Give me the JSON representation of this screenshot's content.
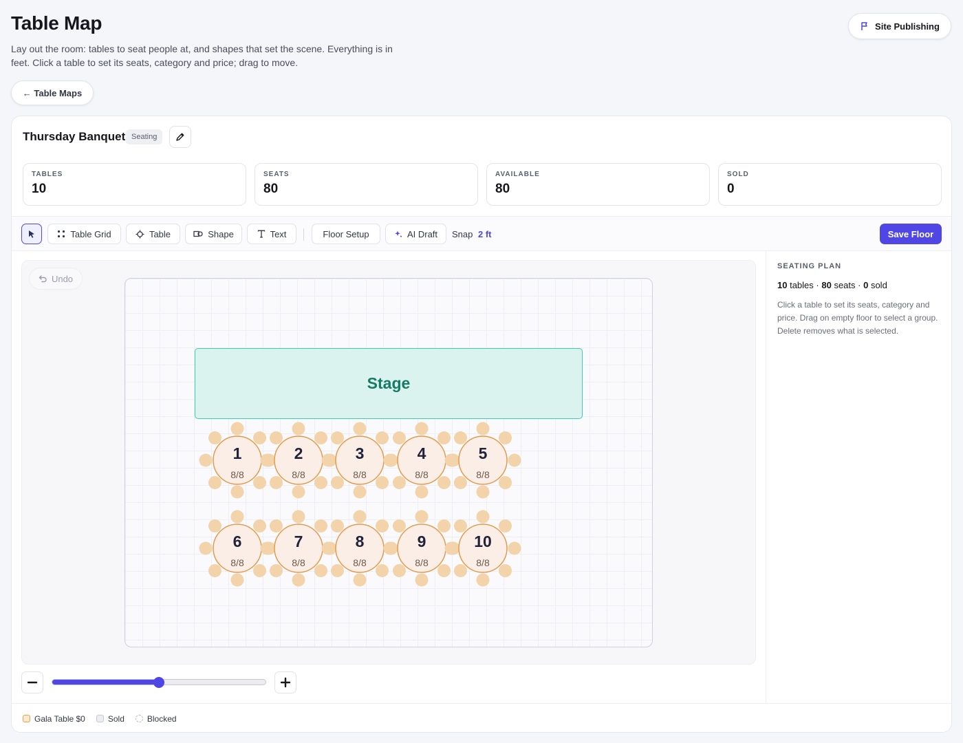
{
  "header": {
    "title": "Table Map",
    "description": "Lay out the room: tables to seat people at, and shapes that set the scene. Everything is in feet. Click a table to set its seats, category and price; drag to move.",
    "publish_label": "Site Publishing",
    "back_label": "← Table Maps"
  },
  "map": {
    "name": "Thursday Banquet",
    "badge": "Seating"
  },
  "stats": [
    {
      "label": "TABLES",
      "value": "10"
    },
    {
      "label": "SEATS",
      "value": "80"
    },
    {
      "label": "AVAILABLE",
      "value": "80"
    },
    {
      "label": "SOLD",
      "value": "0"
    }
  ],
  "toolbar": {
    "table_grid": "Table Grid",
    "table": "Table",
    "shape": "Shape",
    "text": "Text",
    "floor_setup": "Floor Setup",
    "ai_draft": "AI Draft",
    "snap_label": "Snap",
    "snap_value": "2 ft",
    "save_label": "Save Floor"
  },
  "canvas": {
    "undo_label": "Undo",
    "stage_label": "Stage",
    "tables": [
      {
        "number": "1",
        "occupancy": "8/8"
      },
      {
        "number": "2",
        "occupancy": "8/8"
      },
      {
        "number": "3",
        "occupancy": "8/8"
      },
      {
        "number": "4",
        "occupancy": "8/8"
      },
      {
        "number": "5",
        "occupancy": "8/8"
      },
      {
        "number": "6",
        "occupancy": "8/8"
      },
      {
        "number": "7",
        "occupancy": "8/8"
      },
      {
        "number": "8",
        "occupancy": "8/8"
      },
      {
        "number": "9",
        "occupancy": "8/8"
      },
      {
        "number": "10",
        "occupancy": "8/8"
      }
    ],
    "zoom_level": 0.5
  },
  "panel": {
    "title": "SEATING PLAN",
    "tables_count": "10",
    "tables_word": "tables",
    "seats_count": "80",
    "seats_word": "seats",
    "sold_count": "0",
    "sold_word": "sold",
    "help": "Click a table to set its seats, category and price. Drag on empty floor to select a group. Delete removes what is selected."
  },
  "legend": [
    {
      "label": "Gala Table $0",
      "color": "#f0b966"
    },
    {
      "label": "Sold",
      "color": "#d8dae6"
    },
    {
      "label": "Blocked",
      "color": "#c8cad4"
    }
  ],
  "colors": {
    "accent": "#4f46e5",
    "table_fill": "#faeee6",
    "table_border": "#e49a4c",
    "seat_fill": "#f2d3aa",
    "stage_fill": "#dbf3ee",
    "stage_border": "#40c9b3"
  }
}
